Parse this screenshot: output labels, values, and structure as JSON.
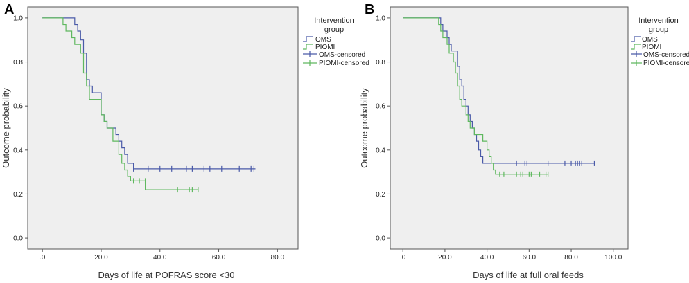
{
  "chart_data": [
    {
      "type": "line",
      "panel": "A",
      "xlabel": "Days of life at POFRAS score <30",
      "ylabel": "Outcome probability",
      "xlim": [
        -5,
        87
      ],
      "ylim": [
        -0.05,
        1.05
      ],
      "xticks": [
        0,
        20,
        40,
        60,
        80
      ],
      "xtick_labels": [
        ".0",
        "20.0",
        "40.0",
        "60.0",
        "80.0"
      ],
      "yticks": [
        0,
        0.2,
        0.4,
        0.6,
        0.8,
        1.0
      ],
      "ytick_labels": [
        "0.0",
        "0.2",
        "0.4",
        "0.6",
        "0.8",
        "1.0"
      ],
      "legend_title": [
        "Intervention",
        "group"
      ],
      "legend_labels": [
        "OMS",
        "PIOMI",
        "OMS-censored",
        "PIOMI-censored"
      ],
      "series": [
        {
          "name": "OMS",
          "color": "#4a5aa8",
          "steps": [
            [
              0,
              1.0
            ],
            [
              10,
              1.0
            ],
            [
              11,
              0.97
            ],
            [
              12,
              0.94
            ],
            [
              13,
              0.9
            ],
            [
              14,
              0.84
            ],
            [
              15,
              0.72
            ],
            [
              16,
              0.69
            ],
            [
              17,
              0.66
            ],
            [
              20,
              0.56
            ],
            [
              21,
              0.53
            ],
            [
              22,
              0.5
            ],
            [
              25,
              0.47
            ],
            [
              26,
              0.44
            ],
            [
              27,
              0.41
            ],
            [
              28,
              0.38
            ],
            [
              29,
              0.34
            ],
            [
              31,
              0.315
            ],
            [
              72.5,
              0.315
            ]
          ],
          "censored": [
            [
              31,
              0.315
            ],
            [
              36,
              0.315
            ],
            [
              40,
              0.315
            ],
            [
              44,
              0.315
            ],
            [
              49,
              0.315
            ],
            [
              51,
              0.315
            ],
            [
              55,
              0.315
            ],
            [
              57,
              0.315
            ],
            [
              61,
              0.315
            ],
            [
              67,
              0.315
            ],
            [
              71,
              0.315
            ],
            [
              72,
              0.315
            ]
          ]
        },
        {
          "name": "PIOMI",
          "color": "#5fb85f",
          "steps": [
            [
              0,
              1.0
            ],
            [
              6,
              1.0
            ],
            [
              7,
              0.97
            ],
            [
              8,
              0.94
            ],
            [
              10,
              0.91
            ],
            [
              11,
              0.88
            ],
            [
              13,
              0.84
            ],
            [
              14,
              0.75
            ],
            [
              15,
              0.69
            ],
            [
              16,
              0.63
            ],
            [
              20,
              0.56
            ],
            [
              21,
              0.53
            ],
            [
              22,
              0.5
            ],
            [
              24,
              0.44
            ],
            [
              26,
              0.38
            ],
            [
              27,
              0.34
            ],
            [
              28,
              0.31
            ],
            [
              29,
              0.28
            ],
            [
              30,
              0.26
            ],
            [
              35,
              0.22
            ],
            [
              53,
              0.22
            ]
          ],
          "censored": [
            [
              31,
              0.26
            ],
            [
              33,
              0.26
            ],
            [
              35,
              0.26
            ],
            [
              46,
              0.22
            ],
            [
              50,
              0.22
            ],
            [
              51,
              0.22
            ],
            [
              53,
              0.22
            ]
          ]
        }
      ]
    },
    {
      "type": "line",
      "panel": "B",
      "xlabel": "Days of life at full oral feeds",
      "ylabel": "Outcome probability",
      "xlim": [
        -6,
        107
      ],
      "ylim": [
        -0.05,
        1.05
      ],
      "xticks": [
        0,
        20,
        40,
        60,
        80,
        100
      ],
      "xtick_labels": [
        ".0",
        "20.0",
        "40.0",
        "60.0",
        "80.0",
        "100.0"
      ],
      "yticks": [
        0,
        0.2,
        0.4,
        0.6,
        0.8,
        1.0
      ],
      "ytick_labels": [
        "0.0",
        "0.2",
        "0.4",
        "0.6",
        "0.8",
        "1.0"
      ],
      "legend_title": [
        "Intervention",
        "group"
      ],
      "legend_labels": [
        "OMS",
        "PIOMI",
        "OMS-censored",
        "PIOMI-censored"
      ],
      "series": [
        {
          "name": "OMS",
          "color": "#4a5aa8",
          "steps": [
            [
              0,
              1.0
            ],
            [
              16,
              1.0
            ],
            [
              18,
              0.97
            ],
            [
              19,
              0.94
            ],
            [
              21,
              0.91
            ],
            [
              22,
              0.88
            ],
            [
              23,
              0.85
            ],
            [
              26,
              0.78
            ],
            [
              27,
              0.72
            ],
            [
              28,
              0.69
            ],
            [
              29,
              0.63
            ],
            [
              30,
              0.6
            ],
            [
              31,
              0.56
            ],
            [
              32,
              0.53
            ],
            [
              33,
              0.5
            ],
            [
              34,
              0.47
            ],
            [
              35,
              0.44
            ],
            [
              36,
              0.4
            ],
            [
              37,
              0.37
            ],
            [
              38,
              0.34
            ],
            [
              91,
              0.34
            ]
          ],
          "censored": [
            [
              54,
              0.34
            ],
            [
              58,
              0.34
            ],
            [
              59,
              0.34
            ],
            [
              69,
              0.34
            ],
            [
              77,
              0.34
            ],
            [
              80,
              0.34
            ],
            [
              82,
              0.34
            ],
            [
              83,
              0.34
            ],
            [
              84,
              0.34
            ],
            [
              85,
              0.34
            ],
            [
              91,
              0.34
            ]
          ]
        },
        {
          "name": "PIOMI",
          "color": "#5fb85f",
          "steps": [
            [
              0,
              1.0
            ],
            [
              15,
              1.0
            ],
            [
              17,
              0.97
            ],
            [
              18,
              0.94
            ],
            [
              19,
              0.91
            ],
            [
              21,
              0.88
            ],
            [
              22,
              0.84
            ],
            [
              24,
              0.8
            ],
            [
              25,
              0.75
            ],
            [
              26,
              0.69
            ],
            [
              27,
              0.63
            ],
            [
              28,
              0.6
            ],
            [
              30,
              0.56
            ],
            [
              31,
              0.53
            ],
            [
              32,
              0.5
            ],
            [
              34,
              0.47
            ],
            [
              38,
              0.44
            ],
            [
              40,
              0.4
            ],
            [
              41,
              0.37
            ],
            [
              42,
              0.34
            ],
            [
              43,
              0.31
            ],
            [
              44,
              0.29
            ],
            [
              69,
              0.29
            ]
          ],
          "censored": [
            [
              46,
              0.29
            ],
            [
              48,
              0.29
            ],
            [
              54,
              0.29
            ],
            [
              56,
              0.29
            ],
            [
              57,
              0.29
            ],
            [
              60,
              0.29
            ],
            [
              61,
              0.29
            ],
            [
              65,
              0.29
            ],
            [
              68,
              0.29
            ],
            [
              69,
              0.29
            ]
          ]
        }
      ]
    }
  ]
}
